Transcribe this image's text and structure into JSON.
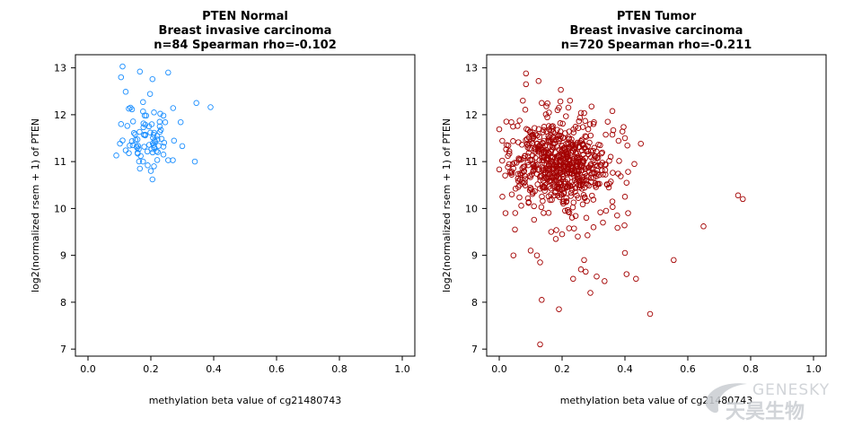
{
  "chart_data": [
    {
      "type": "scatter",
      "title_lines": [
        "PTEN   Normal",
        "Breast invasive carcinoma",
        "n=84    Spearman rho=-0.102"
      ],
      "xlabel": "methylation beta value of cg21480743",
      "ylabel": "log2(normalized rsem + 1) of PTEN",
      "xlim": [
        -0.04,
        1.04
      ],
      "ylim": [
        6.85,
        13.28
      ],
      "xticks": [
        "0.0",
        "0.2",
        "0.4",
        "0.6",
        "0.8",
        "1.0"
      ],
      "yticks": [
        "7",
        "8",
        "9",
        "10",
        "11",
        "12",
        "13"
      ],
      "color": "#1e90ff",
      "grid": false,
      "seed": 11,
      "random_points": {
        "n": 60,
        "x_mean": 0.19,
        "x_sd": 0.035,
        "x_min": 0.1,
        "x_max": 0.3,
        "y_mean": 11.55,
        "y_sd": 0.33
      },
      "points": [
        [
          0.11,
          13.03
        ],
        [
          0.165,
          12.92
        ],
        [
          0.255,
          12.9
        ],
        [
          0.105,
          12.8
        ],
        [
          0.205,
          12.76
        ],
        [
          0.12,
          12.49
        ],
        [
          0.175,
          12.27
        ],
        [
          0.345,
          12.25
        ],
        [
          0.39,
          12.16
        ],
        [
          0.135,
          12.15
        ],
        [
          0.175,
          12.07
        ],
        [
          0.21,
          12.05
        ],
        [
          0.23,
          12.02
        ],
        [
          0.24,
          11.98
        ],
        [
          0.185,
          11.98
        ],
        [
          0.295,
          11.84
        ],
        [
          0.105,
          11.8
        ],
        [
          0.125,
          11.76
        ],
        [
          0.11,
          11.45
        ],
        [
          0.3,
          11.33
        ],
        [
          0.09,
          11.13
        ],
        [
          0.13,
          11.18
        ],
        [
          0.175,
          11.0
        ],
        [
          0.255,
          11.03
        ],
        [
          0.27,
          11.03
        ],
        [
          0.34,
          11.0
        ],
        [
          0.19,
          10.92
        ],
        [
          0.21,
          10.9
        ],
        [
          0.2,
          10.8
        ],
        [
          0.205,
          10.62
        ],
        [
          0.165,
          10.85
        ],
        [
          0.24,
          11.15
        ],
        [
          0.15,
          11.58
        ],
        [
          0.22,
          11.55
        ]
      ]
    },
    {
      "type": "scatter",
      "title_lines": [
        "PTEN   Tumor",
        "Breast invasive carcinoma",
        "n=720    Spearman rho=-0.211"
      ],
      "xlabel": "methylation beta value of cg21480743",
      "ylabel": "log2(normalized rsem + 1) of PTEN",
      "xlim": [
        -0.04,
        1.04
      ],
      "ylim": [
        6.85,
        13.28
      ],
      "xticks": [
        "0.0",
        "0.2",
        "0.4",
        "0.6",
        "0.8",
        "1.0"
      ],
      "yticks": [
        "7",
        "8",
        "9",
        "10",
        "11",
        "12",
        "13"
      ],
      "color": "#a30000",
      "grid": false,
      "seed": 97,
      "random_points": {
        "n": 650,
        "x_mean": 0.19,
        "x_sd": 0.085,
        "x_min": 0.0,
        "x_max": 0.46,
        "y_mean": 10.95,
        "y_sd": 0.48
      },
      "points": [
        [
          0.085,
          12.88
        ],
        [
          0.085,
          12.65
        ],
        [
          0.125,
          12.72
        ],
        [
          0.135,
          12.25
        ],
        [
          0.225,
          12.3
        ],
        [
          0.15,
          12.18
        ],
        [
          0.19,
          12.15
        ],
        [
          0.345,
          11.85
        ],
        [
          0.4,
          11.5
        ],
        [
          0.43,
          10.95
        ],
        [
          0.41,
          10.78
        ],
        [
          0.405,
          10.55
        ],
        [
          0.4,
          10.25
        ],
        [
          0.41,
          9.9
        ],
        [
          0.375,
          9.85
        ],
        [
          0.36,
          10.15
        ],
        [
          0.34,
          9.95
        ],
        [
          0.33,
          9.7
        ],
        [
          0.3,
          9.6
        ],
        [
          0.25,
          9.4
        ],
        [
          0.2,
          9.45
        ],
        [
          0.18,
          9.35
        ],
        [
          0.165,
          9.5
        ],
        [
          0.05,
          9.55
        ],
        [
          0.02,
          9.9
        ],
        [
          0.01,
          10.25
        ],
        [
          0.04,
          10.3
        ],
        [
          0.1,
          9.1
        ],
        [
          0.12,
          9.0
        ],
        [
          0.13,
          8.85
        ],
        [
          0.045,
          9.0
        ],
        [
          0.27,
          8.9
        ],
        [
          0.275,
          8.65
        ],
        [
          0.26,
          8.7
        ],
        [
          0.235,
          8.5
        ],
        [
          0.31,
          8.55
        ],
        [
          0.335,
          8.45
        ],
        [
          0.405,
          8.6
        ],
        [
          0.435,
          8.5
        ],
        [
          0.555,
          8.9
        ],
        [
          0.4,
          9.05
        ],
        [
          0.29,
          8.2
        ],
        [
          0.135,
          8.05
        ],
        [
          0.19,
          7.85
        ],
        [
          0.48,
          7.75
        ],
        [
          0.13,
          7.1
        ],
        [
          0.65,
          9.62
        ],
        [
          0.76,
          10.28
        ],
        [
          0.775,
          10.2
        ],
        [
          0.22,
          12.15
        ],
        [
          0.075,
          12.3
        ],
        [
          0.3,
          11.8
        ]
      ]
    }
  ],
  "watermark": {
    "en": "GENESKY",
    "cn": "天昊生物"
  }
}
